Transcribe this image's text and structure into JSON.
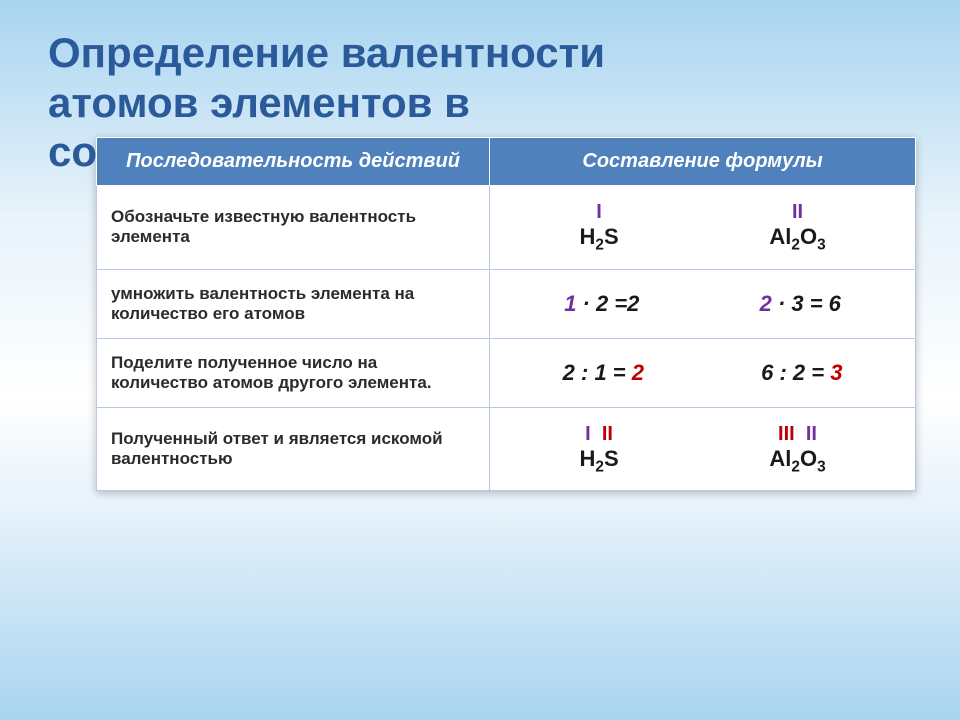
{
  "title_line1": "Определение валентности",
  "title_line2": "атомов элементов в",
  "title_line3": "со",
  "colors": {
    "header_bg": "#4f81bd",
    "header_text": "#ffffff",
    "border": "#b7c9e2",
    "text": "#2b2b2b",
    "title": "#2a5a9a",
    "purple": "#7030a0",
    "red": "#c00000",
    "black": "#1a1a1a"
  },
  "font": {
    "title_size": 42,
    "header_size": 20,
    "body_size": 17,
    "chem_size": 22
  },
  "headers": [
    "Последовательность действий",
    "Составление формулы"
  ],
  "rows": [
    {
      "action": "Обозначьте известную валентность элемента",
      "f1_roman": "I",
      "f1_roman_color": "#7030a0",
      "f1_chem": "H",
      "f1_sub": "2",
      "f1_suffix": "S",
      "f2_roman": "II",
      "f2_roman_color": "#7030a0",
      "f2_chem": "Al",
      "f2_sub": "2",
      "f2_suffix": "O",
      "f2_sub2": "3"
    },
    {
      "action": "умножить валентность элемента на количество его атомов",
      "e1_a": "1",
      "e1_a_color": "#7030a0",
      "e1_rest": " · 2 =2",
      "e2_a": "2",
      "e2_a_color": "#7030a0",
      "e2_rest": " · 3 = 6"
    },
    {
      "action": "Поделите полученное число на количество атомов другого элемента.",
      "e1_lhs": "2 : 1 = ",
      "e1_res": "2",
      "e1_res_color": "#c00000",
      "e2_lhs": "6 : 2 = ",
      "e2_res": "3",
      "e2_res_color": "#c00000"
    },
    {
      "action": "Полученный ответ и является искомой валентностью",
      "r1a": "I",
      "r1a_color": "#7030a0",
      "r1b": "II",
      "r1b_color": "#c00000",
      "r1_chem": "H",
      "r1_sub": "2",
      "r1_suffix": "S",
      "r2a": "III",
      "r2a_color": "#c00000",
      "r2b": "II",
      "r2b_color": "#7030a0",
      "r2_chem": "Al",
      "r2_sub": "2",
      "r2_suffix": "O",
      "r2_sub2": "3"
    }
  ]
}
